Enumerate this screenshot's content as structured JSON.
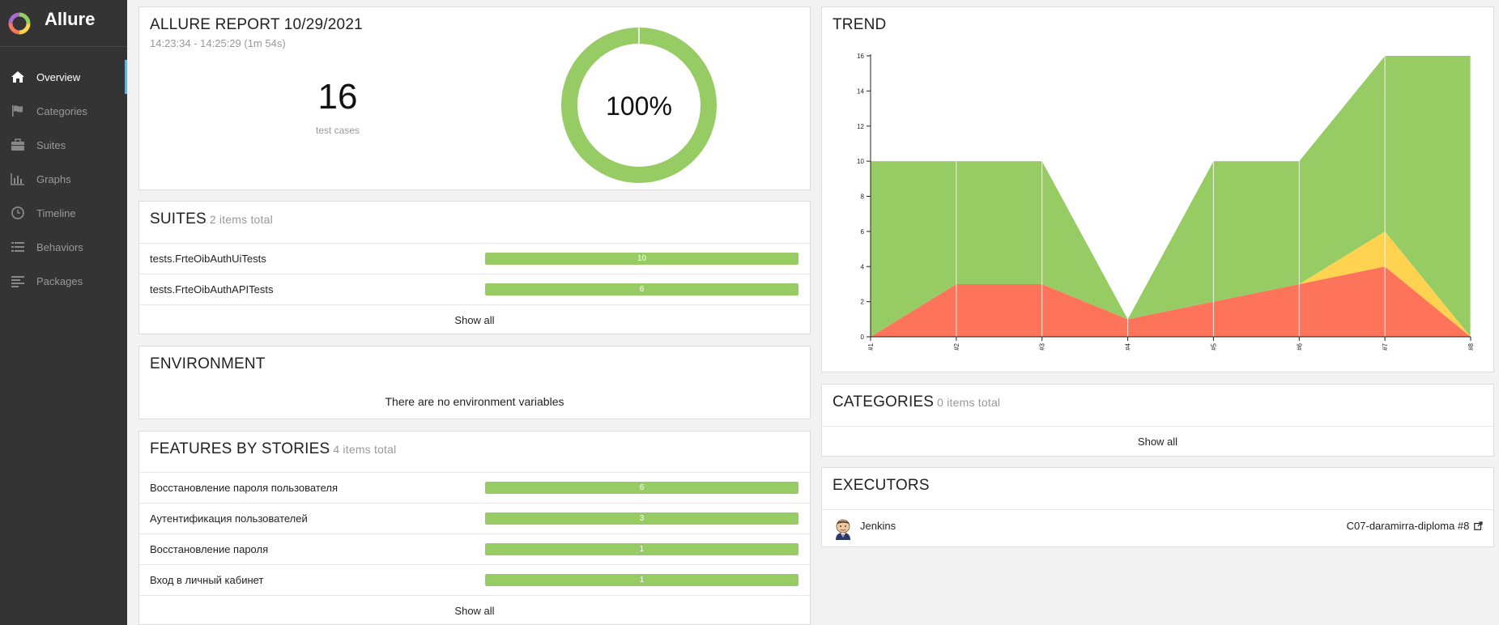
{
  "app": {
    "name": "Allure"
  },
  "nav": {
    "items": [
      {
        "label": "Overview",
        "icon": "home-icon"
      },
      {
        "label": "Categories",
        "icon": "flag-icon"
      },
      {
        "label": "Suites",
        "icon": "briefcase-icon"
      },
      {
        "label": "Graphs",
        "icon": "bar-chart-icon"
      },
      {
        "label": "Timeline",
        "icon": "clock-icon"
      },
      {
        "label": "Behaviors",
        "icon": "list-icon"
      },
      {
        "label": "Packages",
        "icon": "align-left-icon"
      }
    ]
  },
  "summary": {
    "title": "ALLURE REPORT 10/29/2021",
    "time_range": "14:23:34 - 14:25:29 (1m 54s)",
    "test_count": "16",
    "test_count_label": "test cases",
    "success_rate": "100%",
    "passed_fraction": 1.0
  },
  "suites": {
    "title": "SUITES",
    "count_text": "2 items total",
    "items": [
      {
        "name": "tests.FrteOibAuthUiTests",
        "count": "10"
      },
      {
        "name": "tests.FrteOibAuthAPITests",
        "count": "6"
      }
    ],
    "show_all": "Show all"
  },
  "environment": {
    "title": "ENVIRONMENT",
    "empty_text": "There are no environment variables"
  },
  "features": {
    "title": "FEATURES BY STORIES",
    "count_text": "4 items total",
    "items": [
      {
        "name": "Восстановление пароля пользователя",
        "count": "6"
      },
      {
        "name": "Аутентификация пользователей",
        "count": "3"
      },
      {
        "name": "Восстановление пароля",
        "count": "1"
      },
      {
        "name": "Вход в личный кабинет",
        "count": "1"
      }
    ],
    "show_all": "Show all"
  },
  "trend": {
    "title": "TREND"
  },
  "chart_data": {
    "type": "area",
    "title": "TREND",
    "categories": [
      "#1",
      "#2",
      "#3",
      "#4",
      "#5",
      "#6",
      "#7",
      "#8"
    ],
    "stacked": true,
    "series": [
      {
        "key": "failed",
        "color": "#fd745a",
        "values": [
          0,
          3,
          3,
          1,
          2,
          3,
          4,
          0
        ]
      },
      {
        "key": "broken",
        "color": "#ffd350",
        "values": [
          0,
          0,
          0,
          0,
          0,
          0,
          2,
          0
        ]
      },
      {
        "key": "passed",
        "color": "#97cc64",
        "values": [
          10,
          7,
          7,
          0,
          8,
          7,
          10,
          16
        ]
      }
    ],
    "ylim": [
      0,
      16
    ],
    "yticks": [
      "0",
      "2",
      "4",
      "6",
      "8",
      "10",
      "12",
      "14",
      "16"
    ],
    "grid": "vertical"
  },
  "categories": {
    "title": "CATEGORIES",
    "count_text": "0 items total",
    "show_all": "Show all"
  },
  "executors": {
    "title": "EXECUTORS",
    "name": "Jenkins",
    "build": "C07-daramirra-diploma #8"
  },
  "colors": {
    "passed": "#97cc64",
    "failed": "#fd745a",
    "broken": "#ffd350",
    "sidebar": "#343434",
    "accent": "#6cb0dd"
  }
}
